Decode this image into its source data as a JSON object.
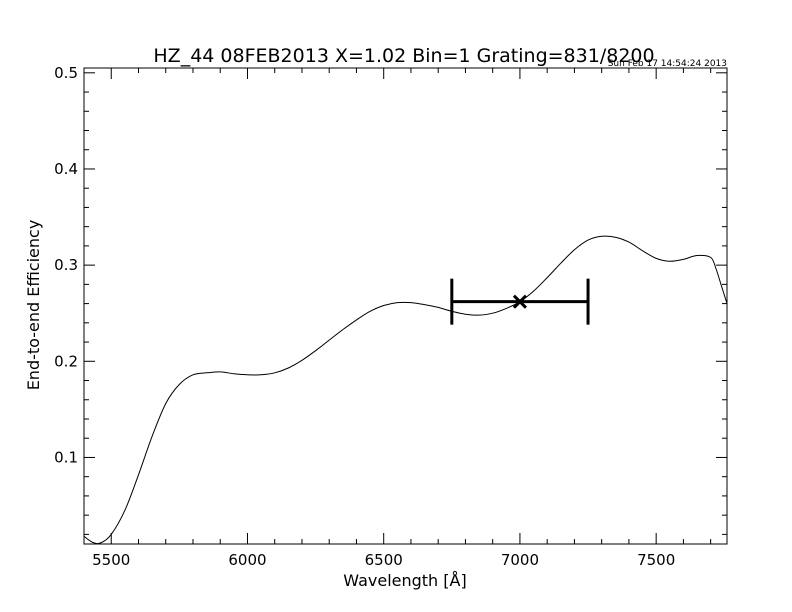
{
  "chart_data": {
    "type": "line",
    "title": "HZ_44 08FEB2013 X=1.02 Bin=1 Grating=831/8200",
    "timestamp": "Sun Feb 17 14:54:24 2013",
    "xlabel": "Wavelength [Å]",
    "ylabel": "End-to-end Efficiency",
    "xlim": [
      5400,
      7760
    ],
    "ylim": [
      0.01,
      0.505
    ],
    "x_ticks": [
      5500,
      6000,
      6500,
      7000,
      7500
    ],
    "y_ticks": [
      0.1,
      0.2,
      0.3,
      0.4,
      0.5
    ],
    "x_tick_labels": [
      "5500",
      "6000",
      "6500",
      "7000",
      "7500"
    ],
    "y_tick_labels": [
      "0.1",
      "0.2",
      "0.3",
      "0.4",
      "0.5"
    ],
    "grid": false,
    "series": [
      {
        "x": [
          5400,
          5430,
          5460,
          5500,
          5550,
          5600,
          5650,
          5700,
          5750,
          5800,
          5850,
          5900,
          5950,
          6000,
          6050,
          6100,
          6150,
          6200,
          6250,
          6300,
          6350,
          6400,
          6450,
          6500,
          6550,
          6600,
          6650,
          6700,
          6750,
          6800,
          6850,
          6900,
          6950,
          7000,
          7050,
          7100,
          7150,
          7200,
          7250,
          7300,
          7350,
          7400,
          7450,
          7500,
          7550,
          7600,
          7650,
          7700,
          7720,
          7740,
          7760
        ],
        "y": [
          0.018,
          0.012,
          0.011,
          0.02,
          0.045,
          0.082,
          0.122,
          0.156,
          0.176,
          0.186,
          0.188,
          0.189,
          0.187,
          0.186,
          0.186,
          0.188,
          0.193,
          0.201,
          0.211,
          0.222,
          0.233,
          0.243,
          0.252,
          0.258,
          0.261,
          0.261,
          0.259,
          0.256,
          0.252,
          0.249,
          0.248,
          0.25,
          0.255,
          0.262,
          0.273,
          0.287,
          0.302,
          0.316,
          0.326,
          0.33,
          0.329,
          0.324,
          0.315,
          0.307,
          0.304,
          0.306,
          0.31,
          0.308,
          0.296,
          0.278,
          0.26
        ]
      }
    ],
    "marker": {
      "x": 7000,
      "y": 0.262,
      "symbol": "x",
      "xerr": [
        6750,
        7250
      ]
    }
  }
}
